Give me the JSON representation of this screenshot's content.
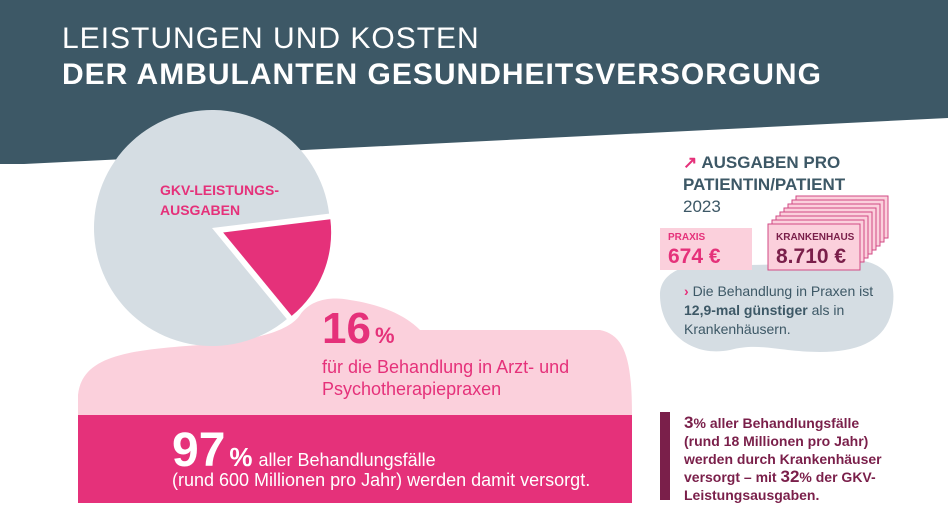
{
  "header": {
    "title_line1": "LEISTUNGEN UND KOSTEN",
    "title_line2": "DER AMBULANTEN GESUNDHEITSVERSORGUNG"
  },
  "pie": {
    "label": "GKV-LEISTUNGS-AUSGABEN",
    "highlight_percent": 16,
    "colors": {
      "main": "#d5dde3",
      "highlight": "#e5317a"
    }
  },
  "share16": {
    "number": "16",
    "unit": "%",
    "description": "für die Behandlung in Arzt- und Psychotherapiepraxen"
  },
  "share97": {
    "number": "97",
    "unit": "%",
    "line1_rest": "aller Behandlungsfälle",
    "line2": "(rund 600 Millionen pro Jahr) werden damit versorgt."
  },
  "share3": {
    "number": "3",
    "unit": "%",
    "text_a": "aller Behandlungsfälle (rund 18 Millionen pro Jahr) werden durch Krankenhäuser versorgt – mit",
    "number_b": "32",
    "unit_b": "%",
    "text_b": "der GKV-Leistungsausgaben."
  },
  "ausgaben": {
    "arrow": "↗",
    "title": "AUSGABEN PRO PATIENTIN/PATIENT",
    "year": "2023",
    "praxis": {
      "label": "PRAXIS",
      "value": "674 €"
    },
    "krankenhaus": {
      "label": "KRANKENHAUS",
      "value": "8.710 €"
    },
    "note_chevron": "›",
    "note_pre": "Die Behandlung in Praxen ist",
    "note_bold": "12,9-mal günstiger",
    "note_post": "als in Krankenhäusern."
  },
  "colors": {
    "header": "#3d5866",
    "magenta": "#e5317a",
    "pink_light": "#fbd0dc",
    "dark_magenta": "#7a1f4a",
    "grey_blue": "#d5dde3"
  }
}
